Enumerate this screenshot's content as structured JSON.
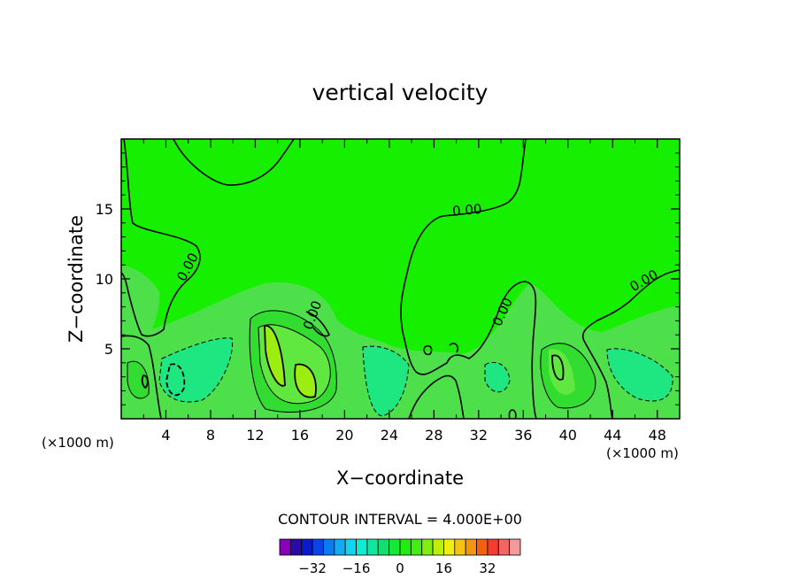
{
  "chart_data": {
    "type": "contour",
    "title": "vertical velocity",
    "xlabel": "X−coordinate",
    "ylabel": "Z−coordinate",
    "x_unit_left": "(×1000 m)",
    "x_unit_right": "(×1000 m)",
    "xlim": [
      0,
      50
    ],
    "ylim": [
      0,
      20
    ],
    "x_ticks": [
      "4",
      "8",
      "12",
      "16",
      "20",
      "24",
      "28",
      "32",
      "36",
      "40",
      "44",
      "48"
    ],
    "x_tick_values": [
      4,
      8,
      12,
      16,
      20,
      24,
      28,
      32,
      36,
      40,
      44,
      48
    ],
    "y_ticks": [
      "5",
      "10",
      "15"
    ],
    "y_tick_values": [
      5,
      10,
      15
    ],
    "contour_labels": [
      {
        "text": "0.00",
        "x": 31.0,
        "y": 14.6
      },
      {
        "text": "0.00",
        "x": 6.3,
        "y": 10.7
      },
      {
        "text": "0.00",
        "x": 17.5,
        "y": 7.3
      },
      {
        "text": "0.00",
        "x": 34.5,
        "y": 7.5
      },
      {
        "text": "0.00",
        "x": 47.0,
        "y": 9.6
      }
    ],
    "contour_interval_label": "CONTOUR INTERVAL = 4.000E+00",
    "colorbar": {
      "colors": [
        "#8800bb",
        "#2a0aa8",
        "#0a1acc",
        "#0a44e6",
        "#0a7cf2",
        "#12aaf2",
        "#10d4f0",
        "#10ecd0",
        "#10e6a0",
        "#10e070",
        "#14e838",
        "#20ec10",
        "#44ec10",
        "#80ee10",
        "#bcee10",
        "#eeee10",
        "#f4c410",
        "#f49410",
        "#f46010",
        "#f43c30",
        "#f46464",
        "#f49a9a"
      ],
      "tick_labels": [
        "−32",
        "−16",
        "0",
        "16",
        "32"
      ],
      "tick_values": [
        -32,
        -16,
        0,
        16,
        32
      ]
    },
    "palette": {
      "background_green": "#16f000",
      "light_green": "#4ee04a",
      "mid_green": "#32dc30",
      "teal": "#1ee680",
      "lime": "#60e840",
      "yellow_green": "#9cee10"
    }
  }
}
